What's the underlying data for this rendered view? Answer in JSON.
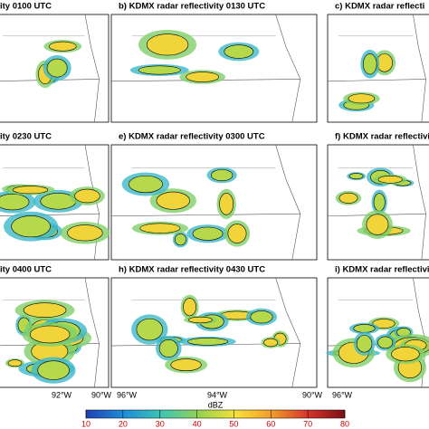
{
  "panels": [
    {
      "title": "ity 0100 UTC"
    },
    {
      "title": "b) KDMX radar reflectivity 0130 UTC"
    },
    {
      "title": "c) KDMX radar reflecti"
    },
    {
      "title": "ity 0230 UTC"
    },
    {
      "title": "e) KDMX radar reflectivity 0300 UTC"
    },
    {
      "title": "f) KDMX radar reflectivity"
    },
    {
      "title": "ity 0400 UTC"
    },
    {
      "title": "h) KDMX radar reflectivity 0430 UTC"
    },
    {
      "title": "i) KDMX radar reflectivity"
    }
  ],
  "lon_labels": [
    "92°W",
    "90°W",
    "96°W",
    "94°W",
    "90°W",
    "96°W"
  ],
  "colorbar": {
    "label": "dBZ",
    "range": [
      10,
      80
    ],
    "ticks": [
      10,
      20,
      30,
      40,
      50,
      60,
      70,
      80
    ]
  }
}
